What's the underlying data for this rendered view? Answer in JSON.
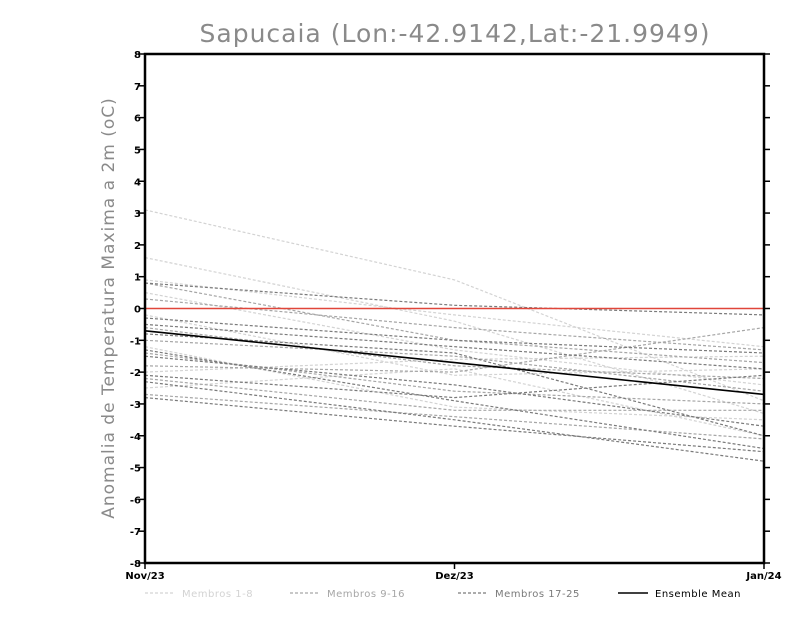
{
  "chart_data": {
    "type": "line",
    "title": "Sapucaia (Lon:-42.9142,Lat:-21.9949)",
    "xlabel": "",
    "ylabel": "Anomalia de Temperatura Maxima a 2m (oC)",
    "categories": [
      "Nov/23",
      "Dez/23",
      "Jan/24"
    ],
    "ylim": [
      -8,
      8
    ],
    "yticks": [
      -8,
      -7,
      -6,
      -5,
      -4,
      -3,
      -2,
      -1,
      0,
      1,
      2,
      3,
      4,
      5,
      6,
      7,
      8
    ],
    "ytick_labels": [
      "-8",
      "-7",
      "-6",
      "-5",
      "-4",
      "-3",
      "-2",
      "-1",
      "0",
      "1",
      "2",
      "3",
      "4",
      "5",
      "6",
      "7",
      "8"
    ],
    "reference_line": {
      "value": 0,
      "color": "#e0463a"
    },
    "legend": [
      {
        "key": "g1",
        "label": "Membros 1-8",
        "color": "#d3d3d3",
        "dashed": true
      },
      {
        "key": "g2",
        "label": "Membros 9-16",
        "color": "#a6a6a6",
        "dashed": true
      },
      {
        "key": "g3",
        "label": "Membros 17-25",
        "color": "#7a7a7a",
        "dashed": true
      },
      {
        "key": "mean",
        "label": "Ensemble Mean",
        "color": "#000000",
        "dashed": false
      }
    ],
    "series": [
      {
        "name": "Membro 1",
        "group": "g1",
        "values": [
          3.1,
          0.9,
          -2.9
        ]
      },
      {
        "name": "Membro 2",
        "group": "g1",
        "values": [
          1.6,
          -0.4,
          -3.3
        ]
      },
      {
        "name": "Membro 3",
        "group": "g1",
        "values": [
          0.9,
          -0.2,
          -1.2
        ]
      },
      {
        "name": "Membro 4",
        "group": "g1",
        "values": [
          0.5,
          -1.3,
          -2.4
        ]
      },
      {
        "name": "Membro 5",
        "group": "g1",
        "values": [
          -0.2,
          -2.1,
          -1.9
        ]
      },
      {
        "name": "Membro 6",
        "group": "g1",
        "values": [
          -1.2,
          -3.1,
          -3.5
        ]
      },
      {
        "name": "Membro 7",
        "group": "g1",
        "values": [
          -2.0,
          -1.6,
          -1.5
        ]
      },
      {
        "name": "Membro 8",
        "group": "g1",
        "values": [
          -2.5,
          -1.9,
          -4.0
        ]
      },
      {
        "name": "Membro 9",
        "group": "g2",
        "values": [
          0.8,
          -1.0,
          -1.7
        ]
      },
      {
        "name": "Membro 10",
        "group": "g2",
        "values": [
          0.3,
          -0.6,
          -1.3
        ]
      },
      {
        "name": "Membro 11",
        "group": "g2",
        "values": [
          -0.6,
          -1.8,
          -2.2
        ]
      },
      {
        "name": "Membro 12",
        "group": "g2",
        "values": [
          -1.4,
          -2.6,
          -3.0
        ]
      },
      {
        "name": "Membro 13",
        "group": "g2",
        "values": [
          -1.8,
          -2.0,
          -0.6
        ]
      },
      {
        "name": "Membro 14",
        "group": "g2",
        "values": [
          -2.2,
          -3.2,
          -3.2
        ]
      },
      {
        "name": "Membro 15",
        "group": "g2",
        "values": [
          -2.7,
          -3.4,
          -4.1
        ]
      },
      {
        "name": "Membro 16",
        "group": "g2",
        "values": [
          -1.0,
          -1.5,
          -2.6
        ]
      },
      {
        "name": "Membro 17",
        "group": "g3",
        "values": [
          0.8,
          0.1,
          -0.2
        ]
      },
      {
        "name": "Membro 18",
        "group": "g3",
        "values": [
          -0.3,
          -1.0,
          -1.4
        ]
      },
      {
        "name": "Membro 19",
        "group": "g3",
        "values": [
          -0.5,
          -1.2,
          -1.9
        ]
      },
      {
        "name": "Membro 20",
        "group": "g3",
        "values": [
          -0.8,
          -1.4,
          -4.0
        ]
      },
      {
        "name": "Membro 21",
        "group": "g3",
        "values": [
          -1.3,
          -2.9,
          -4.4
        ]
      },
      {
        "name": "Membro 22",
        "group": "g3",
        "values": [
          -1.5,
          -2.4,
          -3.7
        ]
      },
      {
        "name": "Membro 23",
        "group": "g3",
        "values": [
          -2.3,
          -3.5,
          -4.8
        ]
      },
      {
        "name": "Membro 24",
        "group": "g3",
        "values": [
          -2.8,
          -3.7,
          -4.5
        ]
      },
      {
        "name": "Membro 25",
        "group": "g3",
        "values": [
          -2.1,
          -2.8,
          -2.1
        ]
      },
      {
        "name": "Ensemble Mean",
        "group": "mean",
        "values": [
          -0.7,
          -1.7,
          -2.7
        ]
      }
    ]
  }
}
